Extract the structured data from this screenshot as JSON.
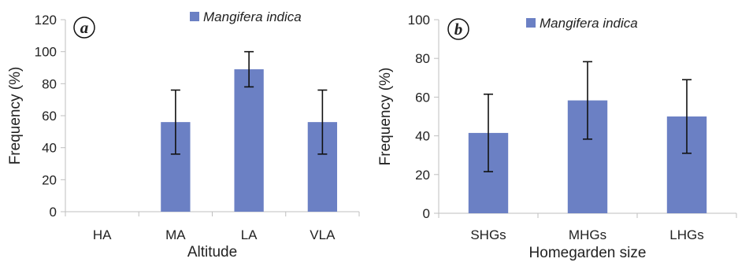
{
  "chart_data": [
    {
      "type": "bar",
      "panel_label": "a",
      "categories": [
        "HA",
        "MA",
        "LA",
        "VLA"
      ],
      "series": [
        {
          "name": "Mangifera indica",
          "values": [
            0,
            56,
            89,
            56
          ],
          "errors": [
            0,
            20,
            11,
            20
          ]
        }
      ],
      "xlabel": "Altitude",
      "ylabel": "Frequency (%)",
      "ylim": [
        0,
        120
      ],
      "yticks": [
        "0",
        "20",
        "40",
        "60",
        "80",
        "100",
        "120"
      ],
      "grid": false,
      "legend_position": "top-center",
      "bar_color": "#6b80c4"
    },
    {
      "type": "bar",
      "panel_label": "b",
      "categories": [
        "SHGs",
        "MHGs",
        "LHGs"
      ],
      "series": [
        {
          "name": "Mangifera indica",
          "values": [
            41.5,
            58.3,
            50
          ],
          "errors": [
            20,
            20,
            19
          ]
        }
      ],
      "xlabel": "Homegarden size",
      "ylabel": "Frequency (%)",
      "ylim": [
        0,
        100
      ],
      "yticks": [
        "0",
        "20",
        "40",
        "60",
        "80",
        "100"
      ],
      "grid": false,
      "legend_position": "top-center",
      "bar_color": "#6b80c4"
    }
  ]
}
